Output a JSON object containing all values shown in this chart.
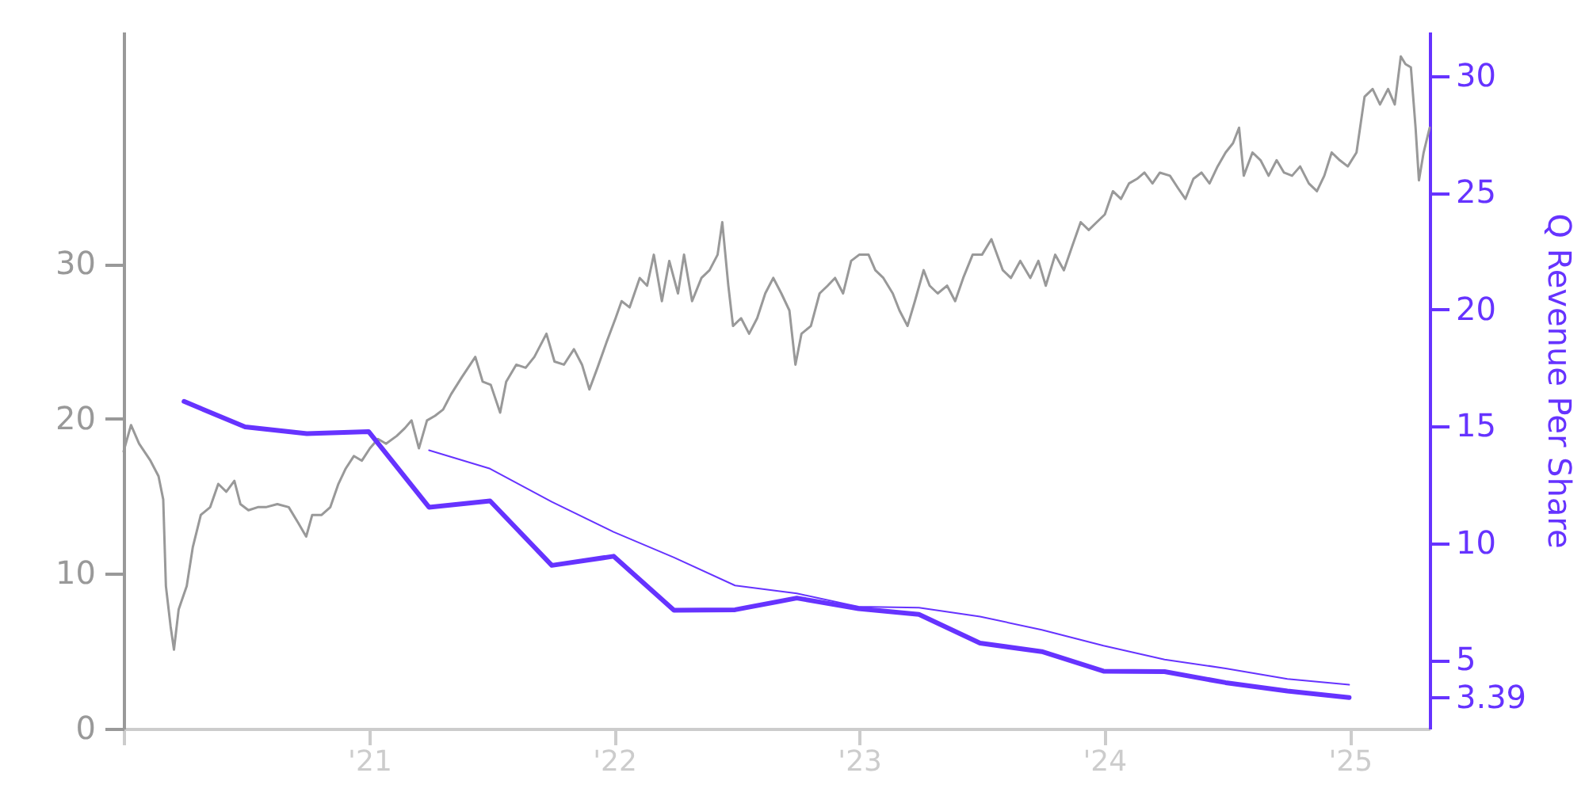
{
  "chart_data": {
    "type": "line",
    "y2label": "Q Revenue Per Share",
    "xlim": [
      "2020-01-01",
      "2025-04-30"
    ],
    "xticks": [
      {
        "value": "2020-01-01",
        "label": null
      },
      {
        "value": "2021-01-01",
        "label": "'21"
      },
      {
        "value": "2022-01-01",
        "label": "'22"
      },
      {
        "value": "2023-01-01",
        "label": "'23"
      },
      {
        "value": "2024-01-01",
        "label": "'24"
      },
      {
        "value": "2025-01-01",
        "label": "'25"
      }
    ],
    "ylim": [
      0,
      45
    ],
    "yticks": [
      0,
      10,
      20,
      30
    ],
    "y2lim": [
      2.06,
      31.9
    ],
    "y2ticks": [
      3.39,
      5,
      10,
      15,
      20,
      25,
      30
    ],
    "series": [
      {
        "color": "#999999",
        "x": [
          "2020-01-01",
          "2020-01-12",
          "2020-01-24",
          "2020-02-10",
          "2020-02-22",
          "2020-02-29",
          "2020-03-04",
          "2020-03-11",
          "2020-03-16",
          "2020-03-23",
          "2020-04-04",
          "2020-04-13",
          "2020-04-25",
          "2020-05-09",
          "2020-05-21",
          "2020-06-02",
          "2020-06-14",
          "2020-06-23",
          "2020-07-05",
          "2020-07-19",
          "2020-07-31",
          "2020-08-17",
          "2020-09-03",
          "2020-09-17",
          "2020-09-29",
          "2020-10-08",
          "2020-10-22",
          "2020-11-04",
          "2020-11-16",
          "2020-11-27",
          "2020-12-09",
          "2020-12-21",
          "2021-01-02",
          "2021-01-14",
          "2021-01-26",
          "2021-02-11",
          "2021-02-23",
          "2021-03-05",
          "2021-03-16",
          "2021-03-28",
          "2021-04-09",
          "2021-04-21",
          "2021-05-03",
          "2021-05-19",
          "2021-06-08",
          "2021-06-19",
          "2021-07-01",
          "2021-07-15",
          "2021-07-24",
          "2021-08-08",
          "2021-08-22",
          "2021-09-04",
          "2021-09-22",
          "2021-10-04",
          "2021-10-18",
          "2021-11-02",
          "2021-11-14",
          "2021-11-25",
          "2021-12-07",
          "2021-12-21",
          "2022-01-03",
          "2022-01-12",
          "2022-01-24",
          "2022-02-08",
          "2022-02-19",
          "2022-03-01",
          "2022-03-13",
          "2022-03-24",
          "2022-04-06",
          "2022-04-15",
          "2022-04-27",
          "2022-05-11",
          "2022-05-23",
          "2022-06-04",
          "2022-06-11",
          "2022-06-20",
          "2022-06-27",
          "2022-07-09",
          "2022-07-21",
          "2022-08-02",
          "2022-08-14",
          "2022-08-26",
          "2022-09-07",
          "2022-09-19",
          "2022-09-28",
          "2022-10-07",
          "2022-10-21",
          "2022-11-03",
          "2022-11-15",
          "2022-11-26",
          "2022-12-08",
          "2022-12-20",
          "2023-01-01",
          "2023-01-15",
          "2023-01-25",
          "2023-02-06",
          "2023-02-20",
          "2023-03-02",
          "2023-03-14",
          "2023-03-25",
          "2023-04-07",
          "2023-04-16",
          "2023-04-28",
          "2023-05-12",
          "2023-05-24",
          "2023-06-05",
          "2023-06-19",
          "2023-07-03",
          "2023-07-17",
          "2023-08-03",
          "2023-08-15",
          "2023-08-29",
          "2023-09-13",
          "2023-09-25",
          "2023-10-06",
          "2023-10-20",
          "2023-11-02",
          "2023-11-14",
          "2023-11-27",
          "2023-12-09",
          "2023-12-21",
          "2024-01-02",
          "2024-01-14",
          "2024-01-26",
          "2024-02-07",
          "2024-02-19",
          "2024-03-01",
          "2024-03-13",
          "2024-03-24",
          "2024-04-08",
          "2024-04-20",
          "2024-05-01",
          "2024-05-13",
          "2024-05-25",
          "2024-06-06",
          "2024-06-18",
          "2024-06-30",
          "2024-07-11",
          "2024-07-20",
          "2024-07-27",
          "2024-08-09",
          "2024-08-21",
          "2024-09-02",
          "2024-09-14",
          "2024-09-25",
          "2024-10-07",
          "2024-10-19",
          "2024-11-01",
          "2024-11-13",
          "2024-11-24",
          "2024-12-05",
          "2024-12-17",
          "2024-12-29",
          "2025-01-11",
          "2025-01-23",
          "2025-02-04",
          "2025-02-15",
          "2025-02-27",
          "2025-03-09",
          "2025-03-18",
          "2025-03-25",
          "2025-04-02",
          "2025-04-09",
          "2025-04-14",
          "2025-04-21",
          "2025-04-30"
        ],
        "values": [
          17.9,
          19.6,
          18.4,
          17.3,
          16.3,
          14.8,
          9.2,
          6.6,
          5.1,
          7.7,
          9.2,
          11.7,
          13.8,
          14.3,
          15.8,
          15.3,
          16.0,
          14.5,
          14.1,
          14.3,
          14.3,
          14.5,
          14.3,
          13.3,
          12.4,
          13.8,
          13.8,
          14.3,
          15.8,
          16.8,
          17.6,
          17.3,
          18.1,
          18.7,
          18.4,
          18.9,
          19.4,
          19.9,
          18.1,
          19.9,
          20.2,
          20.6,
          21.6,
          22.7,
          24.0,
          22.4,
          22.2,
          20.4,
          22.4,
          23.5,
          23.3,
          24.0,
          25.5,
          23.7,
          23.5,
          24.5,
          23.5,
          21.9,
          23.3,
          25.0,
          26.5,
          27.6,
          27.2,
          29.1,
          28.6,
          30.6,
          27.6,
          30.2,
          28.1,
          30.6,
          27.6,
          29.1,
          29.6,
          30.6,
          32.7,
          28.6,
          26.0,
          26.5,
          25.5,
          26.5,
          28.1,
          29.1,
          28.1,
          27.0,
          23.5,
          25.5,
          26.0,
          28.1,
          28.6,
          29.1,
          28.1,
          30.2,
          30.6,
          30.6,
          29.6,
          29.1,
          28.1,
          27.0,
          26.0,
          27.6,
          29.6,
          28.6,
          28.1,
          28.6,
          27.6,
          29.1,
          30.6,
          30.6,
          31.6,
          29.6,
          29.1,
          30.2,
          29.1,
          30.2,
          28.6,
          30.6,
          29.6,
          31.1,
          32.7,
          32.2,
          32.7,
          33.2,
          34.7,
          34.2,
          35.2,
          35.5,
          35.9,
          35.2,
          35.9,
          35.7,
          34.9,
          34.2,
          35.5,
          35.9,
          35.2,
          36.3,
          37.2,
          37.8,
          38.8,
          35.7,
          37.2,
          36.7,
          35.7,
          36.7,
          35.9,
          35.7,
          36.3,
          35.2,
          34.7,
          35.7,
          37.2,
          36.7,
          36.3,
          37.2,
          40.8,
          41.3,
          40.3,
          41.3,
          40.3,
          43.4,
          42.9,
          42.7,
          38.8,
          35.4,
          37.2,
          38.8
        ]
      },
      {
        "color": "#6633ff",
        "axis": "y2",
        "x": [
          "2020-03-31",
          "2020-06-30",
          "2020-09-30",
          "2020-12-31",
          "2021-03-31",
          "2021-06-30",
          "2021-09-30",
          "2021-12-31",
          "2022-03-31",
          "2022-06-30",
          "2022-09-30",
          "2022-12-31",
          "2023-03-31",
          "2023-06-30",
          "2023-09-30",
          "2023-12-31",
          "2024-03-31",
          "2024-06-30",
          "2024-09-30",
          "2024-12-31"
        ],
        "values": [
          16.07,
          14.98,
          14.69,
          14.78,
          11.54,
          11.81,
          9.05,
          9.44,
          7.13,
          7.15,
          7.65,
          7.2,
          6.95,
          5.72,
          5.36,
          4.52,
          4.5,
          4.03,
          3.67,
          3.39
        ]
      },
      {
        "color": "#6633ff",
        "axis": "y2",
        "x": [
          "2021-03-31",
          "2021-06-30",
          "2021-09-30",
          "2021-12-31",
          "2022-03-31",
          "2022-06-30",
          "2022-09-30",
          "2022-12-31",
          "2023-03-31",
          "2023-06-30",
          "2023-09-30",
          "2023-12-31",
          "2024-03-31",
          "2024-06-30",
          "2024-09-30",
          "2024-12-31"
        ],
        "values": [
          13.98,
          13.19,
          11.77,
          10.48,
          9.39,
          8.19,
          7.85,
          7.28,
          7.24,
          6.86,
          6.29,
          5.61,
          5.02,
          4.64,
          4.19,
          3.94
        ]
      }
    ]
  }
}
